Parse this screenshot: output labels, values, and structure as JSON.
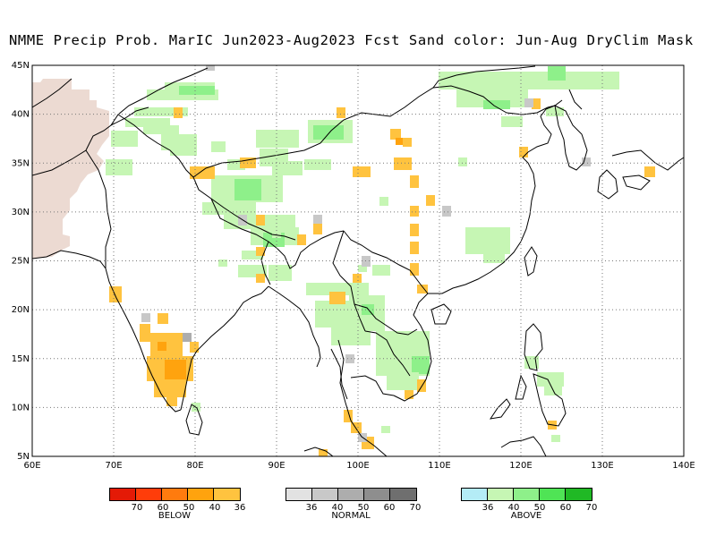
{
  "title": "NMME Precip Prob. MarIC  Jun2023-Aug2023 Fcst  Sand color: Jun-Aug DryClim Mask",
  "map": {
    "lon_range": [
      60,
      140
    ],
    "lat_range": [
      5,
      45
    ],
    "x_ticks": [
      "60E",
      "70E",
      "80E",
      "90E",
      "100E",
      "110E",
      "120E",
      "130E",
      "140E"
    ],
    "y_ticks": [
      "5N",
      "10N",
      "15N",
      "20N",
      "25N",
      "30N",
      "35N",
      "40N",
      "45N"
    ],
    "grid": true
  },
  "legends": [
    {
      "name": "BELOW",
      "ticks": [
        "70",
        "60",
        "50",
        "40",
        "36"
      ],
      "colors": [
        "#e41a06",
        "#ff3d0a",
        "#ff7b0e",
        "#ffa30e",
        "#ffc33f"
      ]
    },
    {
      "name": "NORMAL",
      "ticks": [
        "36",
        "40",
        "50",
        "60",
        "70"
      ],
      "colors": [
        "#e2e2e2",
        "#c8c8c8",
        "#adadad",
        "#8e8e8e",
        "#6f6f6f"
      ]
    },
    {
      "name": "ABOVE",
      "ticks": [
        "36",
        "40",
        "50",
        "60",
        "70"
      ],
      "colors": [
        "#b4ecf6",
        "#c6f6b4",
        "#8ef08a",
        "#4fe455",
        "#20b925"
      ]
    }
  ],
  "colors": {
    "dry_mask": "#ecdad2",
    "above_light": "#c6f6b4",
    "above_mid": "#8ef08a",
    "below_light": "#ffc33f",
    "below_mid": "#ffa30e",
    "normal_light": "#c8c8c8",
    "normal_mid": "#adadad"
  }
}
